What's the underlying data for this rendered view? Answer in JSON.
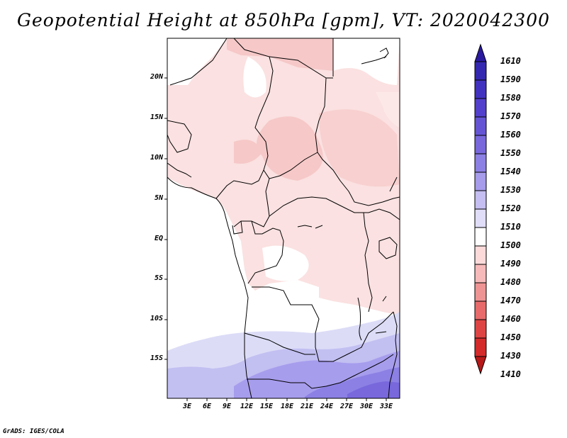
{
  "title": "Geopotential Height at 850hPa [gpm], VT: 2020042300",
  "credit": "GrADS: IGES/COLA",
  "lat_labels": [
    "20N",
    "15N",
    "10N",
    "5N",
    "EQ",
    "5S",
    "10S",
    "15S"
  ],
  "lon_labels": [
    "3E",
    "6E",
    "9E",
    "12E",
    "15E",
    "18E",
    "21E",
    "24E",
    "27E",
    "30E",
    "33E"
  ],
  "colorbar": {
    "levels": [
      "1610",
      "1590",
      "1580",
      "1570",
      "1560",
      "1550",
      "1540",
      "1530",
      "1520",
      "1510",
      "1500",
      "1490",
      "1480",
      "1470",
      "1460",
      "1450",
      "1430",
      "1410"
    ],
    "colors": [
      "#2a1aa0",
      "#3528b0",
      "#4232c0",
      "#5340cc",
      "#6555d4",
      "#7868dc",
      "#8c80e4",
      "#a69ceb",
      "#c4bef2",
      "#e0ddf8",
      "#ffffff",
      "#fddada",
      "#f7baba",
      "#ef9494",
      "#e86a6a",
      "#df4444",
      "#d42a2a",
      "#b81818"
    ]
  }
}
